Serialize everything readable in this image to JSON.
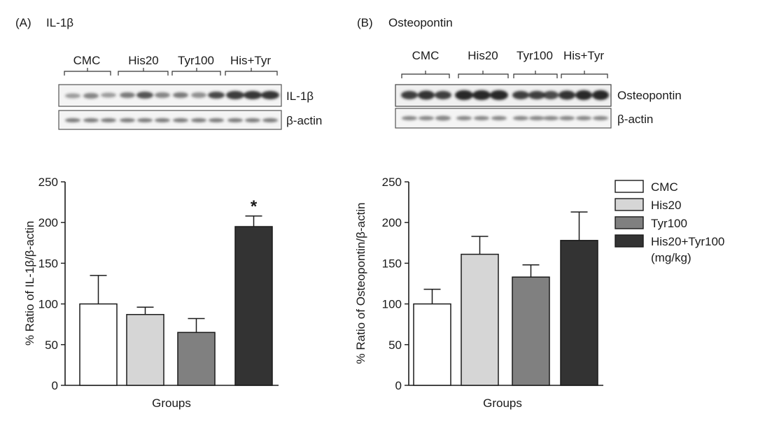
{
  "panels": [
    {
      "letter": "(A)",
      "protein": "IL-1β",
      "blot_groups": [
        "CMC",
        "His20",
        "Tyr100",
        "His+Tyr"
      ],
      "blot_rows": [
        "IL-1β",
        "β-actin"
      ]
    },
    {
      "letter": "(B)",
      "protein": "Osteopontin",
      "blot_groups": [
        "CMC",
        "His20",
        "Tyr100",
        "His+Tyr"
      ],
      "blot_rows": [
        "Osteopontin",
        "β-actin"
      ]
    }
  ],
  "legend": {
    "entries": [
      "CMC",
      "His20",
      "Tyr100",
      "His20+Tyr100"
    ],
    "unit": "(mg/kg)"
  },
  "significance_marker": "*",
  "chart_data": [
    {
      "type": "bar",
      "title": "",
      "xlabel": "Groups",
      "ylabel": "% Ratio of IL-1β/β-actin",
      "categories": [
        "CMC",
        "His20",
        "Tyr100",
        "His20+Tyr100"
      ],
      "values": [
        100,
        87,
        65,
        195
      ],
      "errors": [
        35,
        9,
        17,
        13
      ],
      "significant": [
        false,
        false,
        false,
        true
      ],
      "ylim": [
        0,
        250
      ],
      "yticks": [
        "0",
        "50",
        "100",
        "150",
        "200",
        "250"
      ],
      "colors": [
        "#ffffff",
        "#d6d6d6",
        "#808080",
        "#333333"
      ],
      "grid": false
    },
    {
      "type": "bar",
      "title": "",
      "xlabel": "Groups",
      "ylabel": "% Ratio of Osteopontin/β-actin",
      "categories": [
        "CMC",
        "His20",
        "Tyr100",
        "His20+Tyr100"
      ],
      "values": [
        100,
        161,
        133,
        178
      ],
      "errors": [
        18,
        22,
        15,
        35
      ],
      "significant": [
        false,
        false,
        false,
        false
      ],
      "ylim": [
        0,
        250
      ],
      "yticks": [
        "0",
        "50",
        "100",
        "150",
        "200",
        "250"
      ],
      "colors": [
        "#ffffff",
        "#d6d6d6",
        "#808080",
        "#333333"
      ],
      "grid": false
    }
  ]
}
